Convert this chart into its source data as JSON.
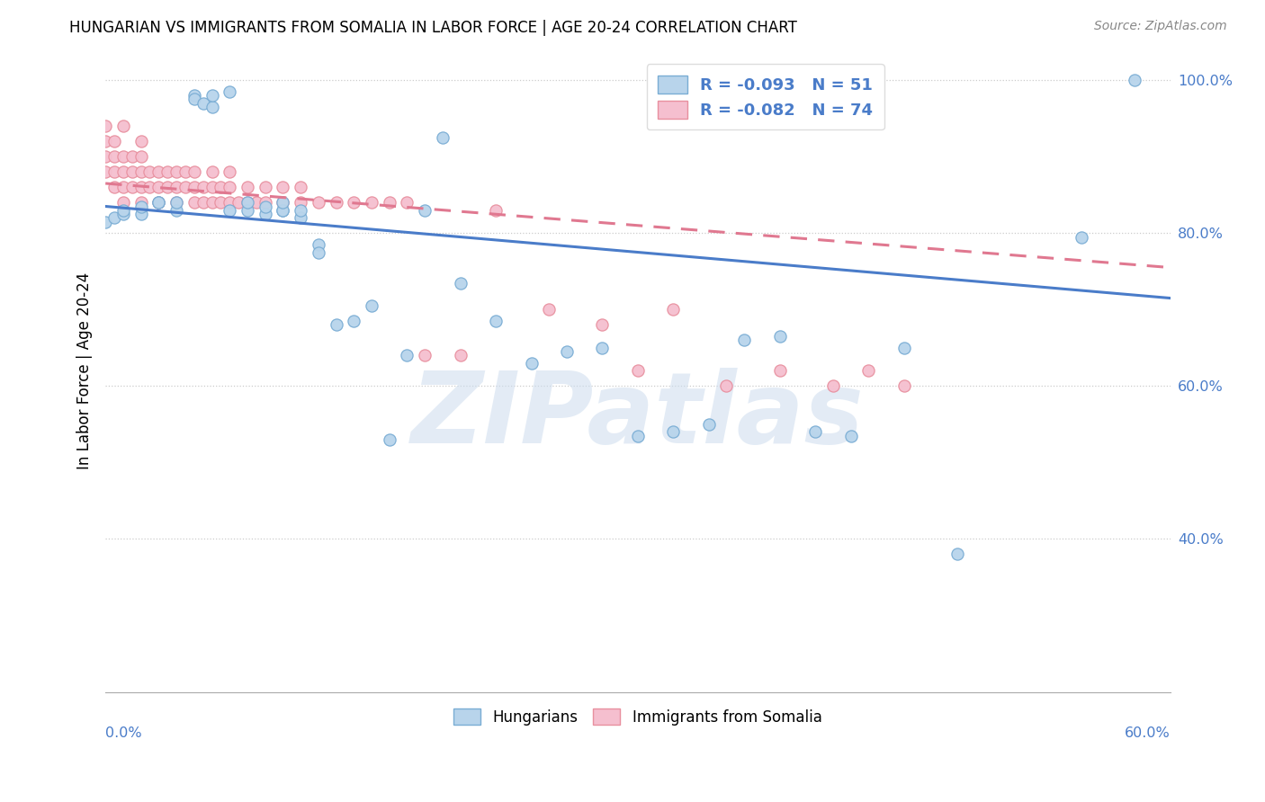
{
  "title": "HUNGARIAN VS IMMIGRANTS FROM SOMALIA IN LABOR FORCE | AGE 20-24 CORRELATION CHART",
  "source": "Source: ZipAtlas.com",
  "ylabel": "In Labor Force | Age 20-24",
  "xmin": 0.0,
  "xmax": 0.6,
  "ymin": 0.2,
  "ymax": 1.04,
  "yticks": [
    0.4,
    0.6,
    0.8,
    1.0
  ],
  "ytick_labels": [
    "40.0%",
    "60.0%",
    "80.0%",
    "100.0%"
  ],
  "watermark": "ZIPatlas",
  "blue_color": "#b8d4eb",
  "blue_edge": "#7aadd4",
  "pink_color": "#f5bfcf",
  "pink_edge": "#e8909f",
  "blue_line_color": "#4a7cc9",
  "pink_line_color": "#e07890",
  "legend_label_hungarians": "Hungarians",
  "legend_label_somalia": "Immigrants from Somalia",
  "blue_R": -0.093,
  "pink_R": -0.082,
  "blue_N": 51,
  "pink_N": 74,
  "blue_line_x0": 0.0,
  "blue_line_y0": 0.835,
  "blue_line_x1": 0.6,
  "blue_line_y1": 0.715,
  "pink_line_x0": 0.0,
  "pink_line_y0": 0.865,
  "pink_line_x1": 0.6,
  "pink_line_y1": 0.755,
  "blue_x": [
    0.0,
    0.005,
    0.01,
    0.01,
    0.02,
    0.02,
    0.03,
    0.03,
    0.04,
    0.04,
    0.05,
    0.05,
    0.055,
    0.06,
    0.06,
    0.07,
    0.07,
    0.08,
    0.08,
    0.09,
    0.09,
    0.1,
    0.1,
    0.1,
    0.11,
    0.11,
    0.12,
    0.12,
    0.13,
    0.14,
    0.15,
    0.16,
    0.17,
    0.18,
    0.19,
    0.2,
    0.22,
    0.24,
    0.26,
    0.28,
    0.3,
    0.32,
    0.34,
    0.36,
    0.38,
    0.4,
    0.42,
    0.45,
    0.48,
    0.55,
    0.58
  ],
  "blue_y": [
    0.815,
    0.82,
    0.825,
    0.83,
    0.825,
    0.835,
    0.84,
    0.84,
    0.83,
    0.84,
    0.98,
    0.975,
    0.97,
    0.965,
    0.98,
    0.985,
    0.83,
    0.83,
    0.84,
    0.825,
    0.835,
    0.83,
    0.83,
    0.84,
    0.82,
    0.83,
    0.785,
    0.775,
    0.68,
    0.685,
    0.705,
    0.53,
    0.64,
    0.83,
    0.925,
    0.735,
    0.685,
    0.63,
    0.645,
    0.65,
    0.535,
    0.54,
    0.55,
    0.66,
    0.665,
    0.54,
    0.535,
    0.65,
    0.38,
    0.795,
    1.0
  ],
  "pink_x": [
    0.0,
    0.0,
    0.0,
    0.0,
    0.005,
    0.005,
    0.005,
    0.005,
    0.01,
    0.01,
    0.01,
    0.01,
    0.01,
    0.015,
    0.015,
    0.015,
    0.02,
    0.02,
    0.02,
    0.02,
    0.02,
    0.025,
    0.025,
    0.03,
    0.03,
    0.03,
    0.035,
    0.035,
    0.04,
    0.04,
    0.04,
    0.045,
    0.045,
    0.05,
    0.05,
    0.05,
    0.055,
    0.055,
    0.06,
    0.06,
    0.06,
    0.065,
    0.065,
    0.07,
    0.07,
    0.07,
    0.075,
    0.08,
    0.08,
    0.085,
    0.09,
    0.09,
    0.1,
    0.1,
    0.11,
    0.11,
    0.12,
    0.13,
    0.14,
    0.15,
    0.16,
    0.17,
    0.18,
    0.2,
    0.22,
    0.25,
    0.28,
    0.3,
    0.32,
    0.35,
    0.38,
    0.41,
    0.43,
    0.45
  ],
  "pink_y": [
    0.88,
    0.9,
    0.92,
    0.94,
    0.86,
    0.88,
    0.9,
    0.92,
    0.84,
    0.86,
    0.88,
    0.9,
    0.94,
    0.86,
    0.88,
    0.9,
    0.84,
    0.86,
    0.88,
    0.9,
    0.92,
    0.86,
    0.88,
    0.84,
    0.86,
    0.88,
    0.86,
    0.88,
    0.84,
    0.86,
    0.88,
    0.86,
    0.88,
    0.84,
    0.86,
    0.88,
    0.84,
    0.86,
    0.84,
    0.86,
    0.88,
    0.84,
    0.86,
    0.84,
    0.86,
    0.88,
    0.84,
    0.84,
    0.86,
    0.84,
    0.84,
    0.86,
    0.84,
    0.86,
    0.84,
    0.86,
    0.84,
    0.84,
    0.84,
    0.84,
    0.84,
    0.84,
    0.64,
    0.64,
    0.83,
    0.7,
    0.68,
    0.62,
    0.7,
    0.6,
    0.62,
    0.6,
    0.62,
    0.6
  ]
}
